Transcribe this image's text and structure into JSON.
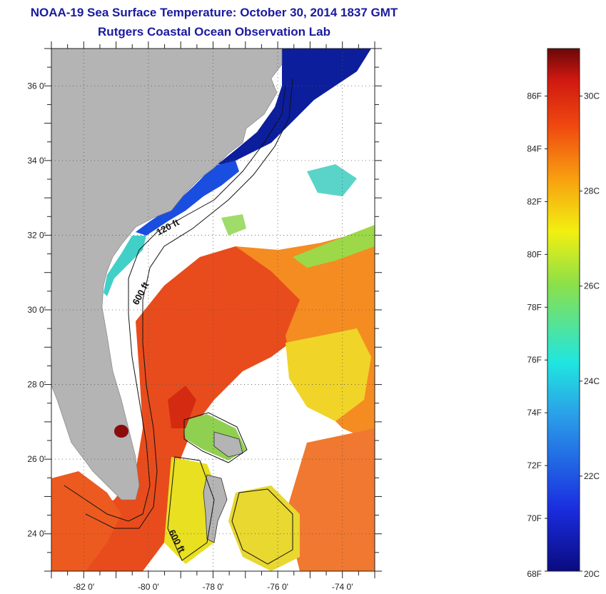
{
  "header": {
    "title": "NOAA-19 Sea Surface Temperature:  October 30, 2014 1837 GMT",
    "subtitle": "Rutgers Coastal Ocean Observation Lab"
  },
  "map": {
    "lon_range": [
      -83,
      -73
    ],
    "lat_range": [
      23,
      37
    ],
    "lon_ticks": [
      {
        "value": -82,
        "label": "-82 0'"
      },
      {
        "value": -80,
        "label": "-80 0'"
      },
      {
        "value": -78,
        "label": "-78 0'"
      },
      {
        "value": -76,
        "label": "-76 0'"
      },
      {
        "value": -74,
        "label": "-74 0'"
      }
    ],
    "lat_ticks": [
      {
        "value": 36,
        "label": "36 0'"
      },
      {
        "value": 34,
        "label": "34 0'"
      },
      {
        "value": 32,
        "label": "32 0'"
      },
      {
        "value": 30,
        "label": "30 0'"
      },
      {
        "value": 28,
        "label": "28 0'"
      },
      {
        "value": 26,
        "label": "26 0'"
      },
      {
        "value": 24,
        "label": "24 0'"
      }
    ],
    "isobaths": [
      {
        "label": "120 ft"
      },
      {
        "label": "600 ft"
      },
      {
        "label": "600 ft"
      }
    ],
    "colors": {
      "land": "#b4b4b4",
      "cloud": "#ffffff",
      "warm": "#e8401c",
      "hot": "#d42410",
      "orange": "#f4861e",
      "yellow": "#f0e020",
      "green": "#90d040",
      "cyan": "#40d0d0",
      "blue": "#1040d0",
      "navy": "#0a1a9a"
    }
  },
  "colorbar": {
    "min_f": 68,
    "max_f": 87.8,
    "f_labels": [
      "86F",
      "84F",
      "82F",
      "80F",
      "78F",
      "76F",
      "74F",
      "72F",
      "70F",
      "68F"
    ],
    "f_values": [
      86,
      84,
      82,
      80,
      78,
      76,
      74,
      72,
      70,
      68
    ],
    "c_labels": [
      "30C",
      "28C",
      "26C",
      "24C",
      "22C",
      "20C"
    ],
    "c_values": [
      30,
      28,
      26,
      24,
      22,
      20
    ]
  }
}
